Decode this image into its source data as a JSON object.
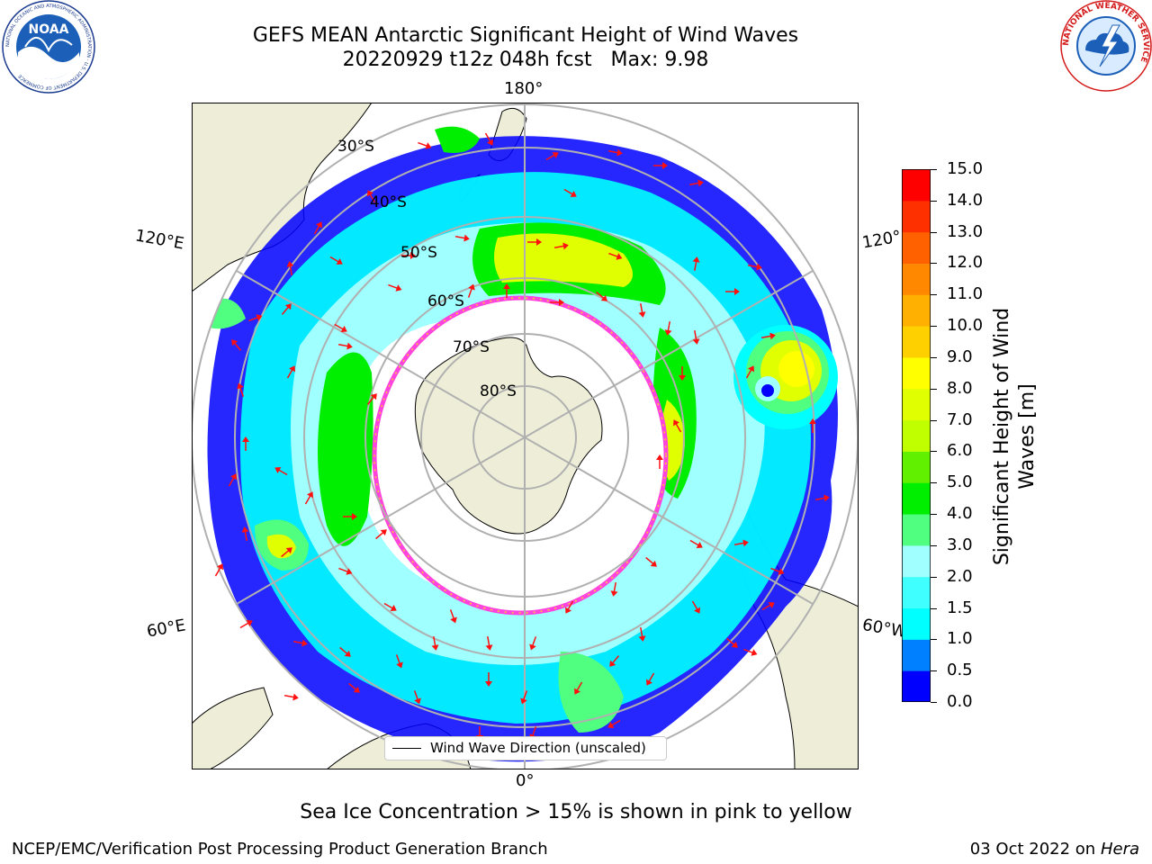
{
  "header": {
    "title_line1": "GEFS MEAN Antarctic Significant Height of Wind Waves",
    "title_line2": "20220929 t12z 048h fcst   Max: 9.98"
  },
  "logos": {
    "noaa_text": "NOAA",
    "noaa_ring_text": "NATIONAL OCEANIC AND ATMOSPHERIC ADMINISTRATION · U.S. DEPARTMENT OF COMMERCE",
    "nws_ring_text": "NATIONAL WEATHER SERVICE"
  },
  "map": {
    "projection": "south polar stereographic",
    "longitude_labels": {
      "top": "180°",
      "upper_left": "120°E",
      "upper_right": "120°",
      "lower_left": "60°E",
      "lower_right": "60°W",
      "bottom": "0°"
    },
    "latitude_labels": [
      "30°S",
      "40°S",
      "50°S",
      "60°S",
      "70°S",
      "80°S"
    ],
    "legend_label": "Wind Wave Direction (unscaled)",
    "colors": {
      "land": "#eeeed8",
      "ocean_nodata": "#ffffff",
      "sea_ice_edge": "#ff44dd",
      "arrow": "#ff1010",
      "grid": "#b0b0b0"
    }
  },
  "colorbar": {
    "label_line1": "Significant Height of Wind",
    "label_line2": "Waves [m]",
    "ticks": [
      "0.0",
      "0.5",
      "1.0",
      "1.5",
      "2.0",
      "3.0",
      "4.0",
      "5.0",
      "6.0",
      "7.0",
      "8.0",
      "9.0",
      "10.0",
      "11.0",
      "12.0",
      "13.0",
      "14.0",
      "15.0"
    ],
    "colors": [
      "#0000ff",
      "#0080ff",
      "#00ffff",
      "#40ffff",
      "#a0ffff",
      "#50ff80",
      "#00ee00",
      "#60f000",
      "#c0ff00",
      "#e0ff00",
      "#ffff00",
      "#ffd000",
      "#ffb000",
      "#ff8800",
      "#ff6000",
      "#ff3000",
      "#ff0000"
    ]
  },
  "chart_data": {
    "type": "heatmap",
    "title": "GEFS MEAN Antarctic Significant Height of Wind Waves",
    "subtitle": "20220929 t12z 048h fcst   Max: 9.98",
    "zlabel": "Significant Height of Wind Waves [m]",
    "zlim": [
      0.0,
      15.0
    ],
    "max_value": 9.98,
    "legend": "Wind Wave Direction (unscaled)",
    "legend_placement": "bottom-center"
  },
  "footer": {
    "note": "Sea Ice Concentration > 15% is shown in pink to yellow",
    "left": "NCEP/EMC/Verification Post Processing Product Generation Branch",
    "right_date": "03 Oct 2022 on ",
    "right_host": "Hera"
  }
}
